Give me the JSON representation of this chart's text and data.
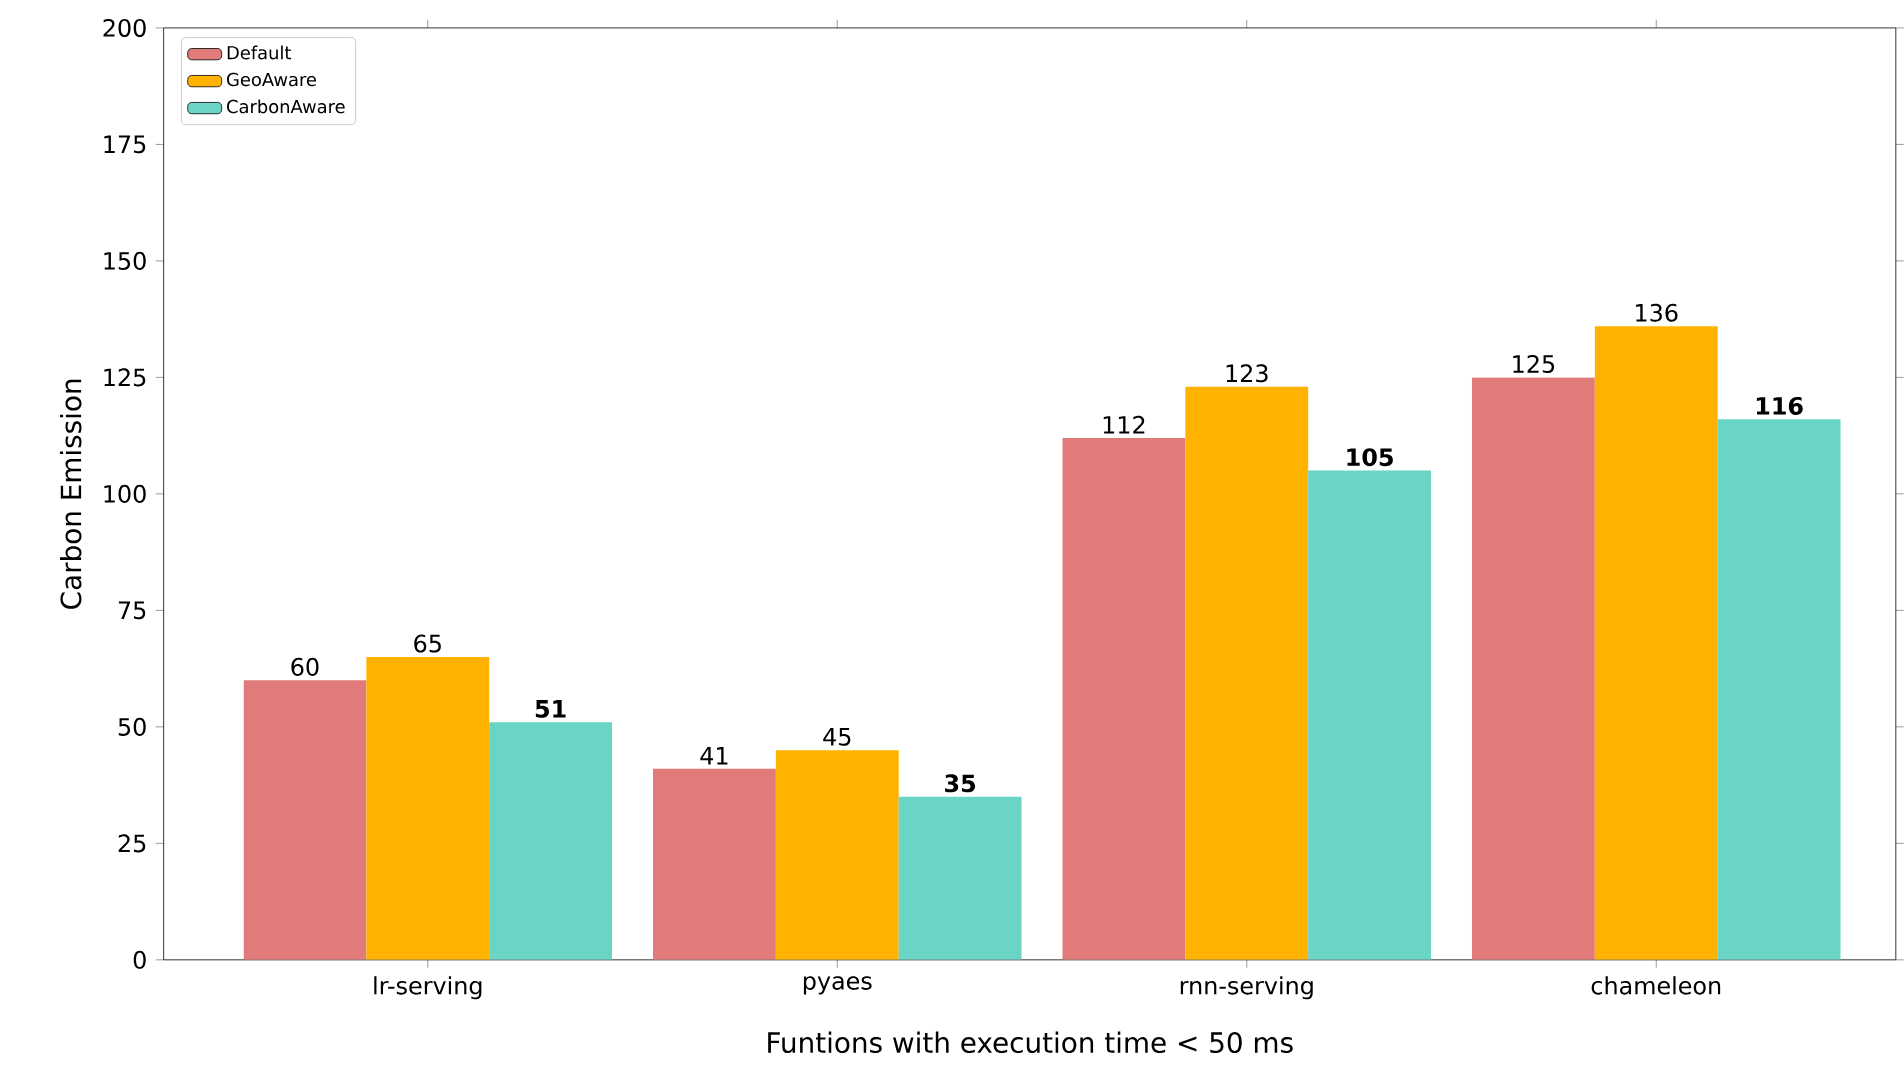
{
  "chart_data": {
    "type": "bar",
    "xlabel": "Funtions with execution time < 50 ms",
    "ylabel": "Carbon Emission",
    "categories": [
      "lr-serving",
      "pyaes",
      "rnn-serving",
      "chameleon"
    ],
    "series": [
      {
        "name": "Default",
        "color": "#e17b7a",
        "values": [
          60,
          41,
          112,
          125
        ],
        "value_labels": [
          "60",
          "41",
          "112",
          "125"
        ]
      },
      {
        "name": "GeoAware",
        "color": "#ffb300",
        "values": [
          65,
          45,
          123,
          136
        ],
        "value_labels": [
          "65",
          "45",
          "123",
          "136"
        ]
      },
      {
        "name": "CarbonAware",
        "color": "#6ad5c5",
        "values": [
          51,
          35,
          105,
          116
        ],
        "value_labels": [
          "**51**",
          "**35**",
          "**105**",
          "**116**"
        ]
      }
    ],
    "ylim": [
      0,
      200
    ],
    "yticks": [
      0,
      25,
      50,
      75,
      100,
      125,
      150,
      175,
      200
    ],
    "legend": "top left"
  }
}
